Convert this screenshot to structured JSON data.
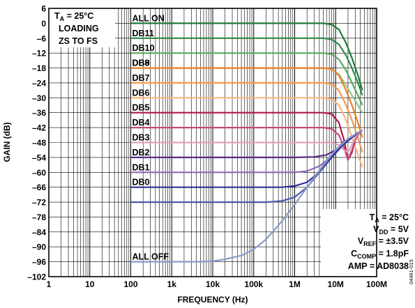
{
  "chart_data": {
    "type": "line",
    "title": "",
    "xlabel": "FREQUENCY (Hz)",
    "ylabel": "GAIN (dB)",
    "xscale": "log",
    "xlim": [
      1,
      100000000
    ],
    "ylim": [
      -102,
      6
    ],
    "grid": true,
    "x_ticks": [
      1,
      10,
      100,
      1000,
      10000,
      100000,
      1000000,
      10000000,
      100000000
    ],
    "x_tick_labels": [
      "1",
      "10",
      "100",
      "1k",
      "10k",
      "100k",
      "1M",
      "10M",
      "100M"
    ],
    "y_ticks": [
      6,
      0,
      -6,
      -12,
      -18,
      -24,
      -30,
      -36,
      -42,
      -48,
      -54,
      -60,
      -66,
      -72,
      -78,
      -84,
      -90,
      -96,
      -102
    ],
    "y_tick_labels": [
      "6",
      "0",
      "–6",
      "–12",
      "–18",
      "–24",
      "–30",
      "–36",
      "–42",
      "–48",
      "–54",
      "–60",
      "–66",
      "–72",
      "–78",
      "–84",
      "–90",
      "–96",
      "–102"
    ],
    "annotation_topleft": {
      "line1_main": "T",
      "line1_sub": "A",
      "line1_rest": " = 25°C",
      "line2": "LOADING",
      "line3": "ZS TO FS"
    },
    "annotation_bottomright": {
      "ta_main": "T",
      "ta_sub": "A",
      "ta_rest": " = 25°C",
      "vdd_main": "V",
      "vdd_sub": "DD",
      "vdd_rest": " = 5V",
      "vref_main": "V",
      "vref_sub": "REF",
      "vref_rest": " = ±3.5V",
      "ccomp_main": "C",
      "ccomp_sub": "COMP",
      "ccomp_rest": " = 1.8pF",
      "amp": "AMP = AD8038"
    },
    "figure_code": "04461-015",
    "series": [
      {
        "name": "ALL ON",
        "color": "#1e7a3c",
        "flat": 0,
        "kind": "roll",
        "x": [
          100,
          1000,
          100000,
          1000000,
          5000000,
          8000000,
          12000000,
          18000000,
          25000000,
          35000000,
          45000000
        ],
        "y": [
          0,
          0,
          0,
          0,
          0,
          -0.5,
          -2.5,
          -8,
          -14,
          -21,
          -27
        ]
      },
      {
        "name": "DB11",
        "color": "#2e8a46",
        "flat": -6,
        "kind": "roll",
        "x": [
          100,
          1000000,
          5000000,
          8000000,
          12000000,
          18000000,
          25000000,
          35000000,
          45000000
        ],
        "y": [
          -6,
          -6,
          -6,
          -6.5,
          -8.5,
          -13,
          -18,
          -24,
          -29
        ]
      },
      {
        "name": "DB10",
        "color": "#5aab5a",
        "flat": -12,
        "kind": "roll",
        "x": [
          100,
          1000000,
          5000000,
          8000000,
          12000000,
          18000000,
          25000000,
          35000000,
          45000000
        ],
        "y": [
          -12,
          -12,
          -12,
          -12.5,
          -14.5,
          -19,
          -24,
          -29,
          -33
        ]
      },
      {
        "name": "DB9",
        "color": "#8cc98c",
        "flat": -18,
        "kind": "roll",
        "x": [
          100,
          1000000,
          5000000,
          8000000,
          12000000,
          18000000,
          25000000,
          35000000,
          45000000
        ],
        "y": [
          -18,
          -18,
          -18,
          -18.5,
          -20.5,
          -25,
          -29,
          -33,
          -36
        ]
      },
      {
        "name": "DB8",
        "color": "#f07f1e",
        "flat": -18,
        "kind": "roll",
        "x": [
          100,
          1000000,
          5000000,
          8000000,
          12000000,
          18000000,
          25000000,
          35000000,
          45000000
        ],
        "y": [
          -18,
          -18,
          -18,
          -18.5,
          -21,
          -27,
          -33,
          -40,
          -46
        ]
      },
      {
        "name": "DB7",
        "color": "#f59a4a",
        "flat": -24,
        "kind": "roll",
        "x": [
          100,
          1000000,
          5000000,
          8000000,
          12000000,
          18000000,
          25000000,
          35000000,
          45000000
        ],
        "y": [
          -24,
          -24,
          -24,
          -24.5,
          -27,
          -33,
          -39,
          -46,
          -52
        ]
      },
      {
        "name": "DB6",
        "color": "#f8b57a",
        "flat": -30,
        "kind": "roll",
        "x": [
          100,
          1000000,
          5000000,
          8000000,
          12000000,
          18000000,
          25000000,
          35000000,
          45000000
        ],
        "y": [
          -30,
          -30,
          -30,
          -30.5,
          -33,
          -39,
          -46,
          -53,
          -58
        ]
      },
      {
        "name": "DB5",
        "color": "#b0174a",
        "flat": -36,
        "kind": "dip",
        "x": [
          100,
          1000000,
          5000000,
          8000000,
          12000000,
          16000000,
          20000000,
          25000000,
          30000000,
          38000000,
          45000000
        ],
        "y": [
          -36,
          -36,
          -36,
          -36.5,
          -40,
          -47,
          -55,
          -52,
          -47,
          -44,
          -43
        ]
      },
      {
        "name": "DB4",
        "color": "#c8477a",
        "flat": -42,
        "kind": "dip",
        "x": [
          100,
          1000000,
          5000000,
          8000000,
          12000000,
          16000000,
          20000000,
          25000000,
          30000000,
          38000000,
          45000000
        ],
        "y": [
          -42,
          -42,
          -42,
          -42.5,
          -45,
          -50,
          -55,
          -51,
          -47,
          -44,
          -43
        ]
      },
      {
        "name": "DB3",
        "color": "#e0a3bc",
        "flat": -48,
        "kind": "dip",
        "x": [
          100,
          1000000,
          5000000,
          8000000,
          12000000,
          16000000,
          20000000,
          25000000,
          30000000,
          38000000,
          45000000
        ],
        "y": [
          -48,
          -48,
          -48,
          -48,
          -49,
          -51,
          -52,
          -49,
          -46,
          -44,
          -43
        ]
      },
      {
        "name": "DB2",
        "color": "#5a2a8a",
        "flat": -54,
        "kind": "rise",
        "x": [
          100,
          1000000,
          3000000,
          6000000,
          10000000,
          20000000,
          30000000,
          45000000
        ],
        "y": [
          -54,
          -54,
          -53.8,
          -53,
          -51,
          -47,
          -45,
          -43
        ]
      },
      {
        "name": "DB1",
        "color": "#8a6ab8",
        "flat": -60,
        "kind": "rise",
        "x": [
          100,
          1000000,
          2000000,
          4000000,
          8000000,
          15000000,
          25000000,
          45000000
        ],
        "y": [
          -60,
          -60,
          -59.5,
          -57.5,
          -53.5,
          -49,
          -46,
          -43
        ]
      },
      {
        "name": "DB0",
        "color": "#30309a",
        "flat": -66,
        "kind": "rise",
        "x": [
          100,
          500000,
          1000000,
          2000000,
          4000000,
          8000000,
          15000000,
          25000000,
          45000000
        ],
        "y": [
          -66,
          -66,
          -65.5,
          -64,
          -60,
          -54,
          -49,
          -46,
          -43
        ]
      },
      {
        "name": "",
        "color": "#4a5aa8",
        "flat": -72,
        "kind": "rise",
        "x": [
          100,
          200000,
          500000,
          1000000,
          2000000,
          4000000,
          8000000,
          15000000,
          25000000,
          45000000
        ],
        "y": [
          -72,
          -72,
          -71.5,
          -70,
          -66,
          -60,
          -53,
          -48,
          -45.5,
          -43
        ]
      },
      {
        "name": "ALL OFF",
        "color": "#8a9ac8",
        "flat": -96,
        "kind": "rise",
        "x": [
          100,
          5000,
          10000,
          20000,
          50000,
          100000,
          200000,
          500000,
          1000000,
          2000000,
          5000000,
          10000000,
          20000000,
          45000000
        ],
        "y": [
          -96,
          -96,
          -95.8,
          -95,
          -93.5,
          -91,
          -87,
          -79.5,
          -73,
          -66,
          -57,
          -51,
          -46.5,
          -43
        ]
      }
    ],
    "series_labels": [
      "ALL ON",
      "DB11",
      "DB10",
      "DB9",
      "DB8",
      "DB7",
      "DB6",
      "DB5",
      "DB4",
      "DB3",
      "DB2",
      "DB1",
      "DB0",
      "ALL OFF"
    ]
  }
}
